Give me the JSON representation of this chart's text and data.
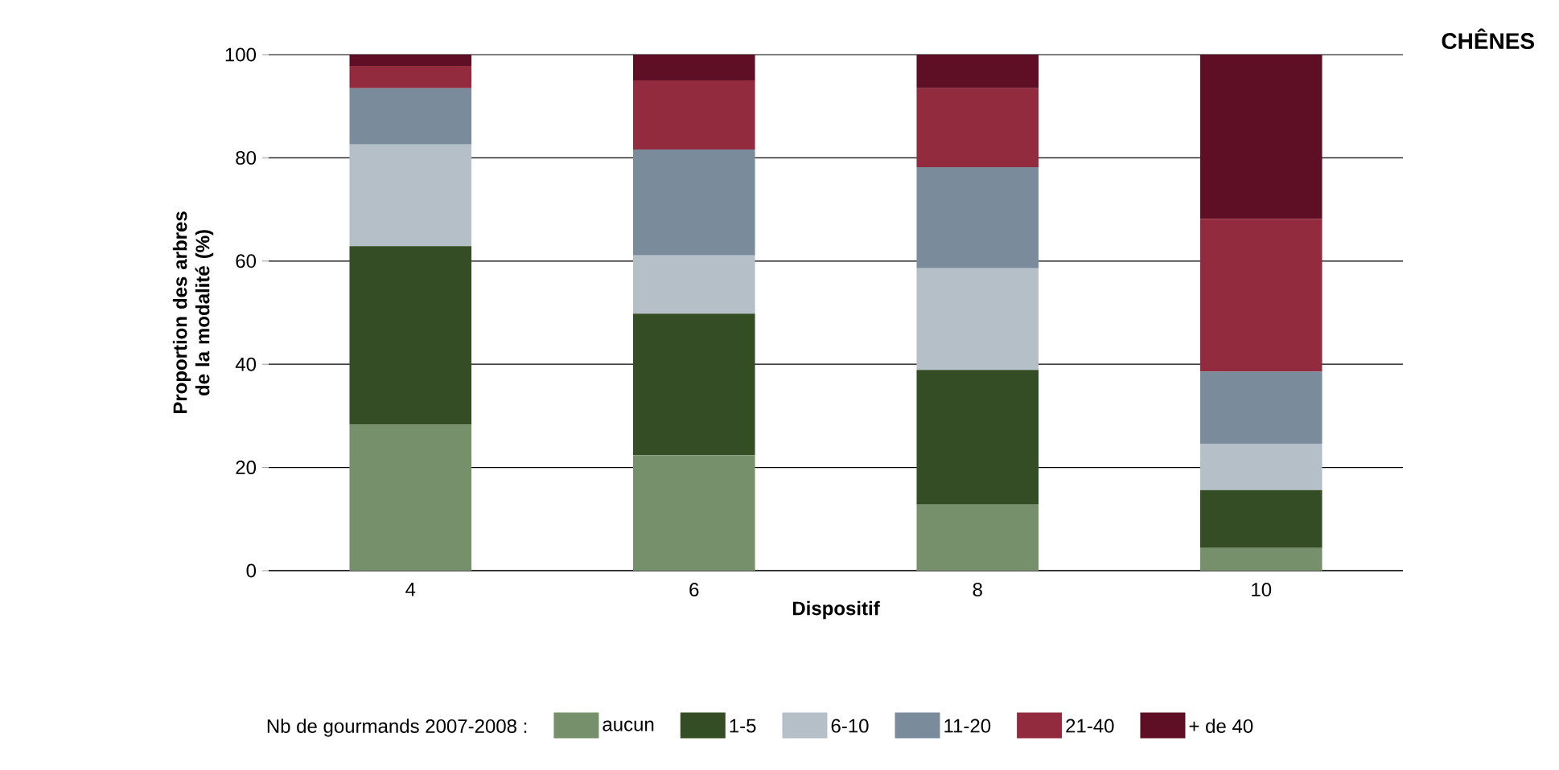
{
  "chart_data": {
    "type": "bar",
    "title": "CHÊNES",
    "xlabel": "Dispositif",
    "ylabel": "Proportion des arbres de la modalité (%)",
    "legend_title": "Nb de gourmands 2007-2008 :",
    "categories": [
      "4",
      "6",
      "8",
      "10"
    ],
    "stacked": true,
    "ylim": [
      0,
      100
    ],
    "yticks": [
      0,
      20,
      40,
      60,
      80,
      100
    ],
    "grid": "y",
    "legend": "bottom",
    "series": [
      {
        "name": "aucun",
        "color": "#76906b",
        "values": [
          28.3,
          22.4,
          12.8,
          4.4
        ]
      },
      {
        "name": "1-5",
        "color": "#354d24",
        "values": [
          34.6,
          27.4,
          26.1,
          11.2
        ]
      },
      {
        "name": "6-10",
        "color": "#b4bfc8",
        "values": [
          19.7,
          11.3,
          19.7,
          9.0
        ]
      },
      {
        "name": "11-20",
        "color": "#7a8b9c",
        "values": [
          10.9,
          20.5,
          19.6,
          14.0
        ]
      },
      {
        "name": "21-40",
        "color": "#922b3e",
        "values": [
          4.3,
          13.4,
          15.3,
          29.6
        ]
      },
      {
        "name": "+ de 40",
        "color": "#5e0f25",
        "values": [
          2.2,
          5.0,
          6.5,
          31.8
        ]
      }
    ]
  }
}
